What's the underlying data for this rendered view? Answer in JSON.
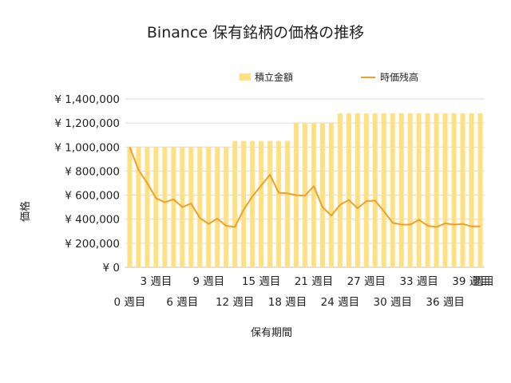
{
  "chart_data": {
    "type": "bar+line",
    "title": "Binance 保有銘柄の価格の推移",
    "xlabel": "保有期間",
    "ylabel": "価格",
    "ylim": [
      0,
      1400000
    ],
    "yticks": [
      0,
      200000,
      400000,
      600000,
      800000,
      1000000,
      1200000,
      1400000
    ],
    "ytick_labels": [
      "¥ 0",
      "¥ 200,000",
      "¥ 400,000",
      "¥ 600,000",
      "¥ 800,000",
      "¥ 1,000,000",
      "¥ 1,200,000",
      "¥ 1,400,000"
    ],
    "grid": true,
    "legend": "top",
    "categories": [
      "0 週目",
      "1 週目",
      "2 週目",
      "3 週目",
      "4 週目",
      "5 週目",
      "6 週目",
      "7 週目",
      "8 週目",
      "9 週目",
      "10 週目",
      "11 週目",
      "12 週目",
      "13 週目",
      "14 週目",
      "15 週目",
      "16 週目",
      "17 週目",
      "18 週目",
      "19 週目",
      "20 週目",
      "21 週目",
      "22 週目",
      "23 週目",
      "24 週目",
      "25 週目",
      "26 週目",
      "27 週目",
      "28 週目",
      "29 週目",
      "30 週目",
      "31 週目",
      "32 週目",
      "33 週目",
      "34 週目",
      "35 週目",
      "36 週目",
      "37 週目",
      "38 週目",
      "39 週目",
      "40 週目"
    ],
    "xtick_labels_row1": [
      "3 週目",
      "9 週目",
      "15 週目",
      "21 週目",
      "27 週目",
      "33 週目",
      "39 週目"
    ],
    "xtick_labels_row1_index": [
      3,
      9,
      15,
      21,
      27,
      33,
      39
    ],
    "xtick_labels_row2": [
      "0 週目",
      "6 週目",
      "12 週目",
      "18 週目",
      "24 週目",
      "30 週目",
      "36 週目"
    ],
    "xtick_labels_row2_index": [
      0,
      6,
      12,
      18,
      24,
      30,
      36
    ],
    "xtick_extra_labels": [
      "週目"
    ],
    "xtick_extra_labels_index": [
      40
    ],
    "series": [
      {
        "name": "積立金額",
        "type": "bar",
        "color": "#ffe083",
        "values": [
          1000000,
          1000000,
          1000000,
          1000000,
          1000000,
          1000000,
          1000000,
          1000000,
          1000000,
          1000000,
          1000000,
          1000000,
          1050000,
          1050000,
          1050000,
          1050000,
          1050000,
          1050000,
          1050000,
          1200000,
          1200000,
          1200000,
          1200000,
          1200000,
          1280000,
          1280000,
          1280000,
          1280000,
          1280000,
          1280000,
          1280000,
          1280000,
          1280000,
          1280000,
          1280000,
          1280000,
          1280000,
          1280000,
          1280000,
          1280000,
          1280000
        ]
      },
      {
        "name": "時価残高",
        "type": "line",
        "color": "#eca12a",
        "values": [
          1000000,
          810000,
          700000,
          575000,
          540000,
          565000,
          500000,
          530000,
          410000,
          360000,
          405000,
          345000,
          335000,
          480000,
          590000,
          680000,
          770000,
          620000,
          615000,
          600000,
          595000,
          675000,
          500000,
          430000,
          520000,
          560000,
          490000,
          550000,
          555000,
          465000,
          370000,
          355000,
          355000,
          395000,
          345000,
          335000,
          365000,
          355000,
          360000,
          340000,
          340000
        ]
      }
    ]
  }
}
